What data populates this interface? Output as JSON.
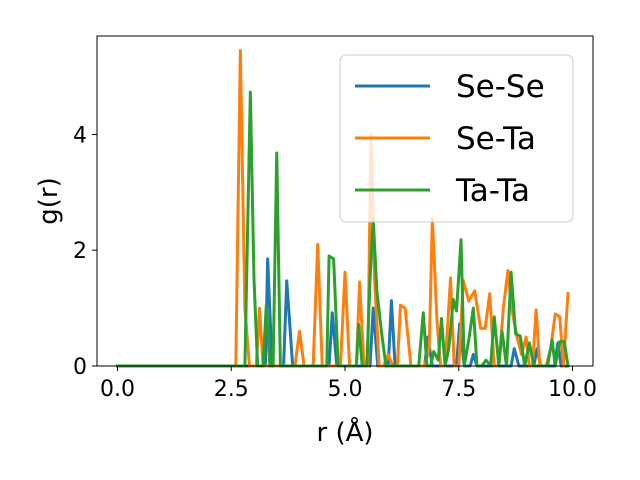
{
  "chart_data": {
    "type": "line",
    "xlabel": "r (Å)",
    "ylabel": "g(r)",
    "xlim": [
      -0.45,
      10.45
    ],
    "ylim": [
      0,
      5.7
    ],
    "xticks": [
      "0.0",
      "2.5",
      "5.0",
      "7.5",
      "10.0"
    ],
    "xtick_values": [
      0,
      2.5,
      5,
      7.5,
      10
    ],
    "yticks": [
      "0",
      "2",
      "4"
    ],
    "ytick_values": [
      0,
      2,
      4
    ],
    "grid": false,
    "legend_position": "top-right",
    "series": [
      {
        "name": "Se-Se",
        "color": "#1f77b4",
        "points": [
          [
            0,
            0
          ],
          [
            2.5,
            0
          ],
          [
            3.25,
            0
          ],
          [
            3.3,
            1.85
          ],
          [
            3.4,
            0
          ],
          [
            3.65,
            0
          ],
          [
            3.72,
            1.47
          ],
          [
            3.85,
            0
          ],
          [
            4.65,
            0
          ],
          [
            4.72,
            0.92
          ],
          [
            4.82,
            0
          ],
          [
            5.55,
            0
          ],
          [
            5.62,
            1.0
          ],
          [
            5.72,
            0
          ],
          [
            5.95,
            0
          ],
          [
            6.02,
            1.13
          ],
          [
            6.1,
            0
          ],
          [
            6.75,
            0
          ],
          [
            6.82,
            0.5
          ],
          [
            6.92,
            0
          ],
          [
            7.45,
            0
          ],
          [
            7.52,
            0.73
          ],
          [
            7.62,
            0
          ],
          [
            7.75,
            0
          ],
          [
            7.82,
            0.2
          ],
          [
            7.9,
            0
          ],
          [
            8.65,
            0
          ],
          [
            8.72,
            0.3
          ],
          [
            8.82,
            0
          ],
          [
            9.15,
            0
          ],
          [
            9.22,
            0.3
          ],
          [
            9.3,
            0
          ],
          [
            9.6,
            0
          ],
          [
            9.68,
            0.4
          ],
          [
            9.75,
            0
          ],
          [
            9.9,
            0
          ]
        ]
      },
      {
        "name": "Se-Ta",
        "color": "#ff7f0e",
        "points": [
          [
            0,
            0
          ],
          [
            2.6,
            0
          ],
          [
            2.7,
            5.45
          ],
          [
            2.8,
            1.0
          ],
          [
            2.9,
            0
          ],
          [
            3.05,
            0
          ],
          [
            3.12,
            1.0
          ],
          [
            3.2,
            0
          ],
          [
            3.9,
            0
          ],
          [
            4.0,
            0.6
          ],
          [
            4.1,
            0
          ],
          [
            4.3,
            0
          ],
          [
            4.4,
            2.1
          ],
          [
            4.5,
            0
          ],
          [
            4.9,
            0
          ],
          [
            5.0,
            1.62
          ],
          [
            5.1,
            0
          ],
          [
            5.25,
            0
          ],
          [
            5.32,
            1.45
          ],
          [
            5.42,
            0
          ],
          [
            5.5,
            0
          ],
          [
            5.57,
            4.0
          ],
          [
            5.65,
            1.5
          ],
          [
            5.75,
            0
          ],
          [
            5.85,
            0
          ],
          [
            5.95,
            0.2
          ],
          [
            6.05,
            0
          ],
          [
            6.15,
            0
          ],
          [
            6.22,
            1.05
          ],
          [
            6.32,
            1.0
          ],
          [
            6.45,
            0
          ],
          [
            6.75,
            0
          ],
          [
            6.85,
            0.3
          ],
          [
            6.92,
            2.55
          ],
          [
            7.02,
            0.8
          ],
          [
            7.1,
            0
          ],
          [
            7.2,
            0
          ],
          [
            7.32,
            1.52
          ],
          [
            7.4,
            0
          ],
          [
            7.5,
            0
          ],
          [
            7.6,
            1.48
          ],
          [
            7.72,
            1.12
          ],
          [
            7.85,
            1.3
          ],
          [
            7.98,
            0.65
          ],
          [
            8.08,
            0.65
          ],
          [
            8.18,
            1.25
          ],
          [
            8.28,
            0
          ],
          [
            8.38,
            0
          ],
          [
            8.48,
            1.0
          ],
          [
            8.58,
            1.65
          ],
          [
            8.68,
            0.92
          ],
          [
            8.78,
            0.5
          ],
          [
            8.88,
            0.2
          ],
          [
            8.98,
            0.5
          ],
          [
            9.05,
            0
          ],
          [
            9.12,
            0
          ],
          [
            9.2,
            0.97
          ],
          [
            9.28,
            0
          ],
          [
            9.42,
            0
          ],
          [
            9.52,
            0.3
          ],
          [
            9.62,
            0.9
          ],
          [
            9.72,
            0.85
          ],
          [
            9.8,
            0
          ],
          [
            9.9,
            1.25
          ]
        ]
      },
      {
        "name": "Ta-Ta",
        "color": "#2ca02c",
        "points": [
          [
            0,
            0
          ],
          [
            2.8,
            0
          ],
          [
            2.92,
            4.73
          ],
          [
            3.0,
            1.5
          ],
          [
            3.08,
            0
          ],
          [
            3.2,
            0
          ],
          [
            3.27,
            1.05
          ],
          [
            3.35,
            0
          ],
          [
            3.42,
            0
          ],
          [
            3.5,
            3.68
          ],
          [
            3.58,
            0
          ],
          [
            3.65,
            0
          ],
          [
            4.6,
            0
          ],
          [
            4.65,
            1.9
          ],
          [
            4.75,
            1.85
          ],
          [
            4.85,
            0
          ],
          [
            5.0,
            0
          ],
          [
            5.25,
            0
          ],
          [
            5.3,
            0.72
          ],
          [
            5.38,
            0
          ],
          [
            5.48,
            0
          ],
          [
            5.55,
            1.5
          ],
          [
            5.62,
            2.55
          ],
          [
            5.7,
            1.3
          ],
          [
            5.8,
            0.6
          ],
          [
            5.9,
            0
          ],
          [
            6.62,
            0
          ],
          [
            6.72,
            0.92
          ],
          [
            6.8,
            0
          ],
          [
            6.88,
            0
          ],
          [
            6.95,
            0.25
          ],
          [
            7.05,
            0.1
          ],
          [
            7.12,
            0.82
          ],
          [
            7.2,
            0
          ],
          [
            7.28,
            0.3
          ],
          [
            7.38,
            1.15
          ],
          [
            7.45,
            0.95
          ],
          [
            7.55,
            2.18
          ],
          [
            7.62,
            0
          ],
          [
            7.72,
            0.45
          ],
          [
            7.82,
            1.0
          ],
          [
            7.9,
            0
          ],
          [
            8.0,
            0
          ],
          [
            8.1,
            0.1
          ],
          [
            8.2,
            0
          ],
          [
            8.28,
            0.85
          ],
          [
            8.38,
            0
          ],
          [
            8.45,
            0.6
          ],
          [
            8.55,
            0
          ],
          [
            8.65,
            1.62
          ],
          [
            8.75,
            0.55
          ],
          [
            8.85,
            0.52
          ],
          [
            8.95,
            0
          ],
          [
            9.05,
            0.4
          ],
          [
            9.15,
            0
          ],
          [
            9.45,
            0
          ],
          [
            9.55,
            0.45
          ],
          [
            9.62,
            0
          ],
          [
            9.72,
            0.42
          ],
          [
            9.82,
            0.42
          ],
          [
            9.9,
            0
          ]
        ]
      }
    ]
  }
}
